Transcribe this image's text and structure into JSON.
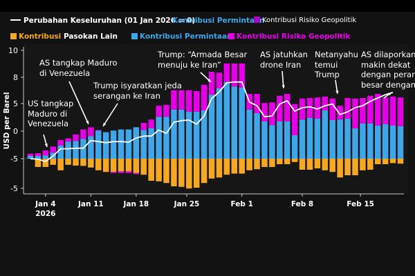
{
  "legend": {
    "row1": {
      "line_label": "Perubahan Keseluruhan (01 Jan 2026 = 0)",
      "demand_label": "Kontribusi Permintaan",
      "geo_label": "Kontribusi Risiko Geopolitik"
    },
    "row2": {
      "supply_prefix": "Kontribusi",
      "supply_suffix": "Pasokan Lain",
      "demand_label": "Kontribusi Permintaan",
      "geo_label": "Kontribusi Risiko Geopolitik"
    }
  },
  "colors": {
    "demand": "#3fa6ea",
    "geo": "#e600e6",
    "geo_legend_row1": "#b000c8",
    "supply": "#f7a823",
    "line": "#ffffff",
    "background": "#121212"
  },
  "annotations": [
    {
      "text": "US tangkap\nMaduro di\nVenezuela"
    },
    {
      "text": "AS tangkap Maduro\ndi Venezuela"
    },
    {
      "text": "Trump isyaratkan jeda\nserangan ke Iran"
    },
    {
      "text": "Trump: “Armada Besar\nmenuju ke Iran”"
    },
    {
      "text": "AS jatuhkan\ndrone Iran"
    },
    {
      "text": "Netanyahu\ntemui\nTrump"
    },
    {
      "text": "AS dilaporkan\nmakin dekat\ndengan perang\nbesar dengan"
    }
  ],
  "chart_data": {
    "type": "bar",
    "stacked": true,
    "ylabel": "USD per Barel",
    "y_tick_labels": [
      "10",
      "8",
      "5",
      "0",
      "-5",
      "-5"
    ],
    "ylim": [
      -6.4,
      20.3
    ],
    "x_ticks": [
      {
        "label": "Jan 4",
        "sublabel": "2026",
        "index": 2
      },
      {
        "label": "Jan 11",
        "index": 8
      },
      {
        "label": "Jan 18",
        "index": 14
      },
      {
        "label": "Jan 25",
        "index": 20.7
      },
      {
        "label": "Feb 1",
        "index": 28
      },
      {
        "label": "Feb 8",
        "index": 36
      },
      {
        "label": "Feb 15",
        "index": 43.7
      }
    ],
    "series": [
      {
        "name": "Kontribusi Permintaan",
        "kind": "bar",
        "values": [
          0.5,
          0.5,
          0.6,
          1.1,
          2.4,
          3.1,
          3.2,
          3.6,
          4.1,
          5.1,
          4.8,
          5.1,
          5.3,
          5.3,
          5.7,
          5.2,
          5.5,
          7.6,
          7.6,
          8.9,
          8.9,
          8.5,
          8.5,
          8.75,
          11.6,
          12.75,
          13.9,
          13.1,
          12.9,
          8.9,
          8.25,
          6.75,
          6.1,
          6.75,
          6.75,
          4.25,
          7.1,
          7.4,
          7.25,
          8.75,
          7.0,
          7.1,
          7.25,
          5.5,
          6.4,
          6.4,
          6.0,
          6.25,
          6.0,
          5.9
        ]
      },
      {
        "name": "Kontribusi Risiko Geopolitik",
        "kind": "bar",
        "values": [
          0.4,
          0.5,
          0.9,
          1.1,
          1.0,
          0.6,
          1.2,
          1.7,
          1.6,
          0.1,
          0,
          -0.2,
          -0.3,
          -0.3,
          -0.2,
          1.3,
          1.6,
          2.0,
          2.15,
          3.5,
          3.5,
          3.9,
          3.75,
          4.65,
          4.15,
          2.85,
          3.35,
          4.15,
          4.35,
          2.85,
          3.5,
          3.35,
          4.1,
          4.65,
          5.0,
          5.65,
          3.8,
          3.6,
          3.85,
          2.5,
          3.9,
          2.5,
          3.75,
          5.4,
          4.6,
          5.0,
          5.75,
          4.85,
          5.25,
          5.2
        ]
      },
      {
        "name": "Kontribusi Pasokan Lain",
        "kind": "bar",
        "values": [
          0,
          -1.5,
          -1.5,
          -1.1,
          -2.1,
          -1.1,
          -1.25,
          -1.3,
          -1.6,
          -2.1,
          -2.4,
          -2.4,
          -2.3,
          -2.3,
          -2.6,
          -2.9,
          -4.0,
          -4.1,
          -4.4,
          -5.0,
          -5.1,
          -5.4,
          -5.25,
          -4.4,
          -3.6,
          -3.4,
          -2.9,
          -2.7,
          -2.7,
          -2.1,
          -1.9,
          -1.5,
          -1.5,
          -1.0,
          -1.0,
          -0.6,
          -2.0,
          -2.0,
          -1.75,
          -2.1,
          -2.4,
          -3.4,
          -3.0,
          -3.0,
          -2.1,
          -2.0,
          -1.0,
          -1.0,
          -0.8,
          -0.9
        ]
      },
      {
        "name": "Perubahan Keseluruhan (01 Jan 2026 = 0)",
        "kind": "line",
        "values": [
          0,
          -0.1,
          -0.5,
          0.5,
          1.8,
          1.8,
          1.9,
          1.9,
          3.3,
          3.1,
          2.9,
          3.1,
          3.1,
          3.0,
          3.75,
          4.1,
          4.1,
          5.2,
          4.6,
          6.6,
          6.9,
          7.0,
          6.25,
          7.75,
          10.9,
          12.1,
          13.75,
          13.9,
          13.9,
          10.25,
          9.6,
          7.6,
          7.75,
          9.9,
          10.5,
          8.6,
          9.25,
          9.4,
          9.0,
          9.6,
          9.9,
          8.0,
          8.5,
          9.25,
          9.6,
          10.4,
          11.0,
          11.6,
          12.0,
          null
        ]
      }
    ]
  }
}
